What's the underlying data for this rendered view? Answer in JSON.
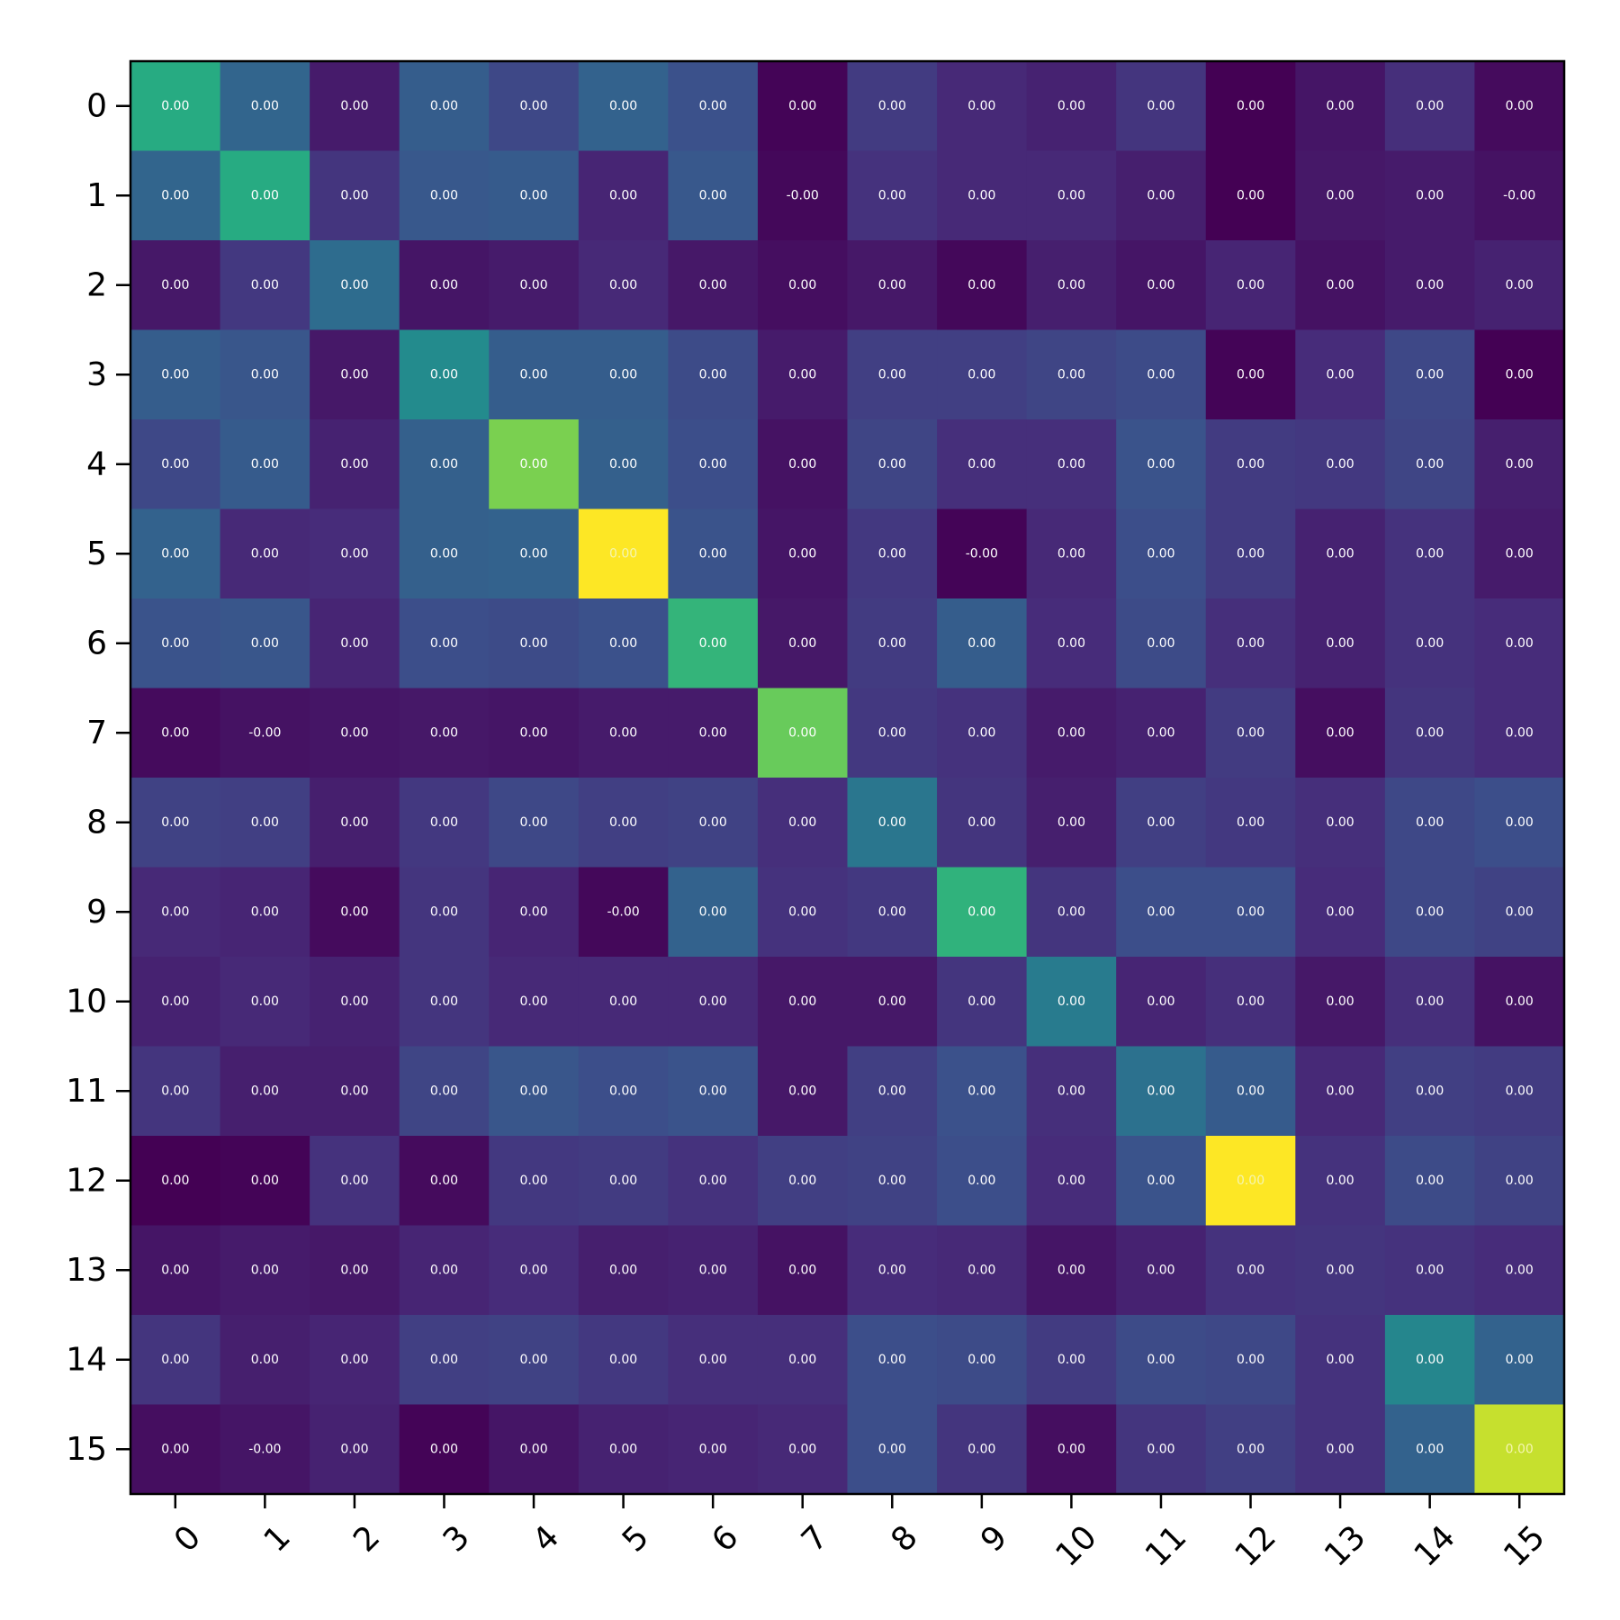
{
  "chart_data": {
    "type": "heatmap",
    "title": "",
    "xlabel": "",
    "ylabel": "",
    "x_categories": [
      "0",
      "1",
      "2",
      "3",
      "4",
      "5",
      "6",
      "7",
      "8",
      "9",
      "10",
      "11",
      "12",
      "13",
      "14",
      "15"
    ],
    "y_categories": [
      "0",
      "1",
      "2",
      "3",
      "4",
      "5",
      "6",
      "7",
      "8",
      "9",
      "10",
      "11",
      "12",
      "13",
      "14",
      "15"
    ],
    "colormap": "viridis",
    "grid": false,
    "legend": "none",
    "color_intensity": [
      [
        0.62,
        0.33,
        0.08,
        0.3,
        0.22,
        0.32,
        0.25,
        0.01,
        0.18,
        0.12,
        0.1,
        0.16,
        0.0,
        0.06,
        0.14,
        0.03
      ],
      [
        0.33,
        0.62,
        0.16,
        0.28,
        0.29,
        0.11,
        0.28,
        0.02,
        0.15,
        0.12,
        0.12,
        0.09,
        0.0,
        0.07,
        0.08,
        0.05
      ],
      [
        0.07,
        0.17,
        0.36,
        0.06,
        0.08,
        0.12,
        0.07,
        0.04,
        0.07,
        0.02,
        0.09,
        0.06,
        0.11,
        0.05,
        0.08,
        0.1
      ],
      [
        0.3,
        0.27,
        0.07,
        0.48,
        0.3,
        0.3,
        0.23,
        0.08,
        0.19,
        0.19,
        0.21,
        0.23,
        0.01,
        0.13,
        0.22,
        0.0
      ],
      [
        0.22,
        0.29,
        0.1,
        0.31,
        0.8,
        0.31,
        0.24,
        0.05,
        0.21,
        0.14,
        0.14,
        0.26,
        0.18,
        0.17,
        0.21,
        0.09
      ],
      [
        0.32,
        0.12,
        0.13,
        0.31,
        0.32,
        1.0,
        0.26,
        0.06,
        0.17,
        0.01,
        0.12,
        0.24,
        0.18,
        0.1,
        0.15,
        0.08
      ],
      [
        0.26,
        0.27,
        0.11,
        0.24,
        0.23,
        0.25,
        0.66,
        0.07,
        0.18,
        0.3,
        0.13,
        0.23,
        0.14,
        0.1,
        0.15,
        0.13
      ],
      [
        0.03,
        0.05,
        0.06,
        0.07,
        0.06,
        0.08,
        0.08,
        0.77,
        0.17,
        0.15,
        0.08,
        0.1,
        0.18,
        0.04,
        0.16,
        0.13
      ],
      [
        0.2,
        0.19,
        0.09,
        0.17,
        0.22,
        0.19,
        0.2,
        0.14,
        0.4,
        0.16,
        0.09,
        0.19,
        0.17,
        0.14,
        0.22,
        0.24
      ],
      [
        0.12,
        0.11,
        0.03,
        0.16,
        0.11,
        0.02,
        0.32,
        0.15,
        0.17,
        0.65,
        0.16,
        0.24,
        0.24,
        0.13,
        0.22,
        0.2
      ],
      [
        0.1,
        0.12,
        0.1,
        0.16,
        0.12,
        0.12,
        0.12,
        0.07,
        0.07,
        0.16,
        0.42,
        0.11,
        0.14,
        0.07,
        0.14,
        0.05
      ],
      [
        0.16,
        0.09,
        0.09,
        0.21,
        0.27,
        0.24,
        0.26,
        0.07,
        0.19,
        0.25,
        0.14,
        0.38,
        0.29,
        0.12,
        0.19,
        0.18
      ],
      [
        0.0,
        0.01,
        0.15,
        0.03,
        0.17,
        0.18,
        0.15,
        0.19,
        0.2,
        0.24,
        0.13,
        0.26,
        1.0,
        0.15,
        0.23,
        0.2
      ],
      [
        0.06,
        0.08,
        0.07,
        0.11,
        0.13,
        0.09,
        0.1,
        0.05,
        0.13,
        0.12,
        0.06,
        0.1,
        0.15,
        0.16,
        0.15,
        0.13
      ],
      [
        0.16,
        0.09,
        0.11,
        0.19,
        0.2,
        0.17,
        0.14,
        0.14,
        0.24,
        0.23,
        0.18,
        0.23,
        0.22,
        0.15,
        0.46,
        0.32
      ],
      [
        0.04,
        0.06,
        0.1,
        0.01,
        0.06,
        0.1,
        0.11,
        0.12,
        0.24,
        0.16,
        0.04,
        0.16,
        0.19,
        0.15,
        0.32,
        0.92
      ]
    ],
    "cell_labels": [
      [
        "0.00",
        "0.00",
        "0.00",
        "0.00",
        "0.00",
        "0.00",
        "0.00",
        "0.00",
        "0.00",
        "0.00",
        "0.00",
        "0.00",
        "0.00",
        "0.00",
        "0.00",
        "0.00"
      ],
      [
        "0.00",
        "0.00",
        "0.00",
        "0.00",
        "0.00",
        "0.00",
        "0.00",
        "-0.00",
        "0.00",
        "0.00",
        "0.00",
        "0.00",
        "0.00",
        "0.00",
        "0.00",
        "-0.00"
      ],
      [
        "0.00",
        "0.00",
        "0.00",
        "0.00",
        "0.00",
        "0.00",
        "0.00",
        "0.00",
        "0.00",
        "0.00",
        "0.00",
        "0.00",
        "0.00",
        "0.00",
        "0.00",
        "0.00"
      ],
      [
        "0.00",
        "0.00",
        "0.00",
        "0.00",
        "0.00",
        "0.00",
        "0.00",
        "0.00",
        "0.00",
        "0.00",
        "0.00",
        "0.00",
        "0.00",
        "0.00",
        "0.00",
        "0.00"
      ],
      [
        "0.00",
        "0.00",
        "0.00",
        "0.00",
        "0.00",
        "0.00",
        "0.00",
        "0.00",
        "0.00",
        "0.00",
        "0.00",
        "0.00",
        "0.00",
        "0.00",
        "0.00",
        "0.00"
      ],
      [
        "0.00",
        "0.00",
        "0.00",
        "0.00",
        "0.00",
        "0.00",
        "0.00",
        "0.00",
        "0.00",
        "-0.00",
        "0.00",
        "0.00",
        "0.00",
        "0.00",
        "0.00",
        "0.00"
      ],
      [
        "0.00",
        "0.00",
        "0.00",
        "0.00",
        "0.00",
        "0.00",
        "0.00",
        "0.00",
        "0.00",
        "0.00",
        "0.00",
        "0.00",
        "0.00",
        "0.00",
        "0.00",
        "0.00"
      ],
      [
        "0.00",
        "-0.00",
        "0.00",
        "0.00",
        "0.00",
        "0.00",
        "0.00",
        "0.00",
        "0.00",
        "0.00",
        "0.00",
        "0.00",
        "0.00",
        "0.00",
        "0.00",
        "0.00"
      ],
      [
        "0.00",
        "0.00",
        "0.00",
        "0.00",
        "0.00",
        "0.00",
        "0.00",
        "0.00",
        "0.00",
        "0.00",
        "0.00",
        "0.00",
        "0.00",
        "0.00",
        "0.00",
        "0.00"
      ],
      [
        "0.00",
        "0.00",
        "0.00",
        "0.00",
        "0.00",
        "-0.00",
        "0.00",
        "0.00",
        "0.00",
        "0.00",
        "0.00",
        "0.00",
        "0.00",
        "0.00",
        "0.00",
        "0.00"
      ],
      [
        "0.00",
        "0.00",
        "0.00",
        "0.00",
        "0.00",
        "0.00",
        "0.00",
        "0.00",
        "0.00",
        "0.00",
        "0.00",
        "0.00",
        "0.00",
        "0.00",
        "0.00",
        "0.00"
      ],
      [
        "0.00",
        "0.00",
        "0.00",
        "0.00",
        "0.00",
        "0.00",
        "0.00",
        "0.00",
        "0.00",
        "0.00",
        "0.00",
        "0.00",
        "0.00",
        "0.00",
        "0.00",
        "0.00"
      ],
      [
        "0.00",
        "0.00",
        "0.00",
        "0.00",
        "0.00",
        "0.00",
        "0.00",
        "0.00",
        "0.00",
        "0.00",
        "0.00",
        "0.00",
        "0.00",
        "0.00",
        "0.00",
        "0.00"
      ],
      [
        "0.00",
        "0.00",
        "0.00",
        "0.00",
        "0.00",
        "0.00",
        "0.00",
        "0.00",
        "0.00",
        "0.00",
        "0.00",
        "0.00",
        "0.00",
        "0.00",
        "0.00",
        "0.00"
      ],
      [
        "0.00",
        "0.00",
        "0.00",
        "0.00",
        "0.00",
        "0.00",
        "0.00",
        "0.00",
        "0.00",
        "0.00",
        "0.00",
        "0.00",
        "0.00",
        "0.00",
        "0.00",
        "0.00"
      ],
      [
        "0.00",
        "-0.00",
        "0.00",
        "0.00",
        "0.00",
        "0.00",
        "0.00",
        "0.00",
        "0.00",
        "0.00",
        "0.00",
        "0.00",
        "0.00",
        "0.00",
        "0.00",
        "0.00"
      ]
    ]
  }
}
